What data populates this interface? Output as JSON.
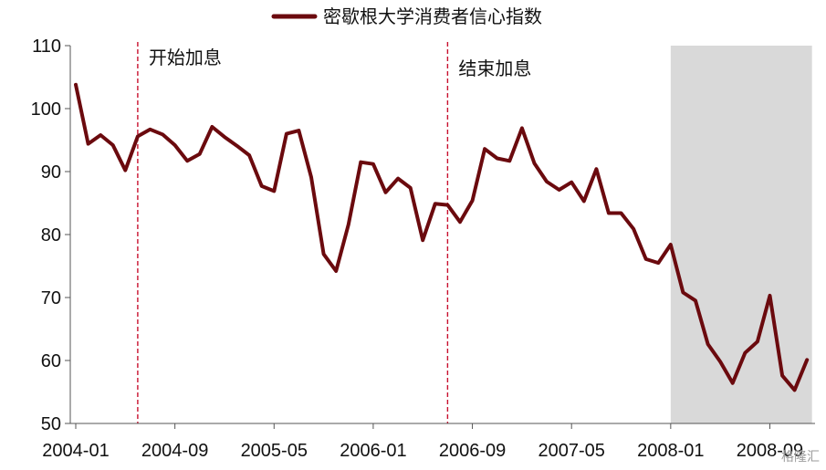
{
  "chart_data": {
    "type": "line",
    "title": "",
    "xlabel": "",
    "ylabel": "",
    "ylim": [
      50,
      110
    ],
    "yticks": [
      50,
      60,
      70,
      80,
      90,
      100,
      110
    ],
    "xtick_labels": [
      "2004-01",
      "2004-09",
      "2005-05",
      "2006-01",
      "2006-09",
      "2007-05",
      "2008-01",
      "2008-09"
    ],
    "legend": {
      "position": "top-center",
      "entries": [
        "密歇根大学消费者信心指数"
      ]
    },
    "grid": false,
    "colors": {
      "series": "#6b0a0e",
      "shade": "#d9d9d9",
      "marker_line": "#c8102e"
    },
    "series": [
      {
        "name": "密歇根大学消费者信心指数",
        "x": [
          "2004-01",
          "2004-02",
          "2004-03",
          "2004-04",
          "2004-05",
          "2004-06",
          "2004-07",
          "2004-08",
          "2004-09",
          "2004-10",
          "2004-11",
          "2004-12",
          "2005-01",
          "2005-02",
          "2005-03",
          "2005-04",
          "2005-05",
          "2005-06",
          "2005-07",
          "2005-08",
          "2005-09",
          "2005-10",
          "2005-11",
          "2005-12",
          "2006-01",
          "2006-02",
          "2006-03",
          "2006-04",
          "2006-05",
          "2006-06",
          "2006-07",
          "2006-08",
          "2006-09",
          "2006-10",
          "2006-11",
          "2006-12",
          "2007-01",
          "2007-02",
          "2007-03",
          "2007-04",
          "2007-05",
          "2007-06",
          "2007-07",
          "2007-08",
          "2007-09",
          "2007-10",
          "2007-11",
          "2007-12",
          "2008-01",
          "2008-02",
          "2008-03",
          "2008-04",
          "2008-05",
          "2008-06",
          "2008-07",
          "2008-08",
          "2008-09",
          "2008-10",
          "2008-11",
          "2008-12"
        ],
        "values": [
          103.8,
          94.4,
          95.8,
          94.2,
          90.2,
          95.6,
          96.7,
          95.9,
          94.2,
          91.7,
          92.8,
          97.1,
          95.5,
          94.1,
          92.6,
          87.7,
          86.9,
          96.0,
          96.5,
          89.1,
          76.9,
          74.2,
          81.6,
          91.5,
          91.2,
          86.7,
          88.9,
          87.4,
          79.1,
          84.9,
          84.7,
          82.0,
          85.4,
          93.6,
          92.1,
          91.7,
          96.9,
          91.3,
          88.4,
          87.1,
          88.3,
          85.3,
          90.4,
          83.4,
          83.4,
          80.9,
          76.1,
          75.5,
          78.4,
          70.8,
          69.5,
          62.6,
          59.8,
          56.4,
          61.2,
          63.0,
          70.3,
          57.6,
          55.3,
          60.1
        ]
      }
    ],
    "recession_shading": {
      "start": "2008-01",
      "end": "2008-12"
    },
    "annotations": [
      {
        "label": "开始加息",
        "date": "2004-06"
      },
      {
        "label": "结束加息",
        "date": "2006-07"
      }
    ]
  },
  "watermark": "格隆汇"
}
